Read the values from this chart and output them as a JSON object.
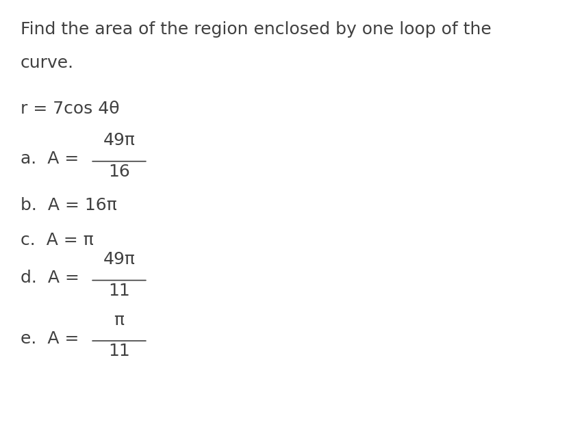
{
  "background_color": "#ffffff",
  "text_color": "#404040",
  "title_line1": "Find the area of the region enclosed by one loop of the",
  "title_line2": "curve.",
  "equation": "r = 7cos 4θ",
  "options": [
    {
      "label": "a.",
      "prefix": "A = ",
      "numerator": "49π",
      "denominator": "16",
      "is_fraction": true
    },
    {
      "label": "b.",
      "prefix": "A = 16π",
      "is_fraction": false
    },
    {
      "label": "c.",
      "prefix": "A = π",
      "is_fraction": false
    },
    {
      "label": "d.",
      "prefix": "A = ",
      "numerator": "49π",
      "denominator": "11",
      "is_fraction": true
    },
    {
      "label": "e.",
      "prefix": "A = ",
      "numerator": "π",
      "denominator": "11",
      "is_fraction": true
    }
  ],
  "font_size_title": 18,
  "font_size_eq": 18,
  "font_size_options": 18
}
